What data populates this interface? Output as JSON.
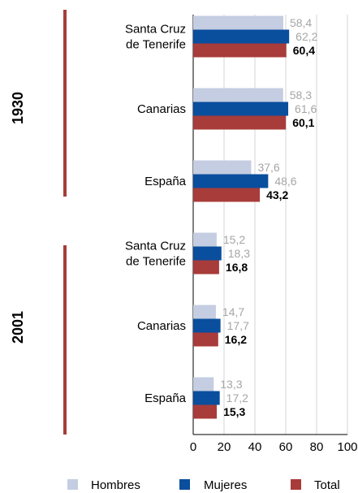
{
  "chart_data": {
    "type": "bar",
    "orientation": "horizontal",
    "xlim": [
      0,
      100
    ],
    "xticks": [
      "0",
      "20",
      "40",
      "60",
      "80",
      "100"
    ],
    "grid": true,
    "legend_position": "bottom",
    "groups": [
      {
        "label": "1930",
        "categories": [
          {
            "label": [
              "Santa Cruz",
              "de Tenerife"
            ],
            "values": [
              58.4,
              62.2,
              60.4
            ],
            "labels": [
              "58,4",
              "62,2",
              "60,4"
            ]
          },
          {
            "label": [
              "Canarias"
            ],
            "values": [
              58.3,
              61.6,
              60.1
            ],
            "labels": [
              "58,3",
              "61,6",
              "60,1"
            ]
          },
          {
            "label": [
              "España"
            ],
            "values": [
              37.6,
              48.6,
              43.2
            ],
            "labels": [
              "37,6",
              "48,6",
              "43,2"
            ]
          }
        ]
      },
      {
        "label": "2001",
        "categories": [
          {
            "label": [
              "Santa Cruz",
              "de Tenerife"
            ],
            "values": [
              15.2,
              18.3,
              16.8
            ],
            "labels": [
              "15,2",
              "18,3",
              "16,8"
            ]
          },
          {
            "label": [
              "Canarias"
            ],
            "values": [
              14.7,
              17.7,
              16.2
            ],
            "labels": [
              "14,7",
              "17,7",
              "16,2"
            ]
          },
          {
            "label": [
              "España"
            ],
            "values": [
              13.3,
              17.2,
              15.3
            ],
            "labels": [
              "13,3",
              "17,2",
              "15,3"
            ]
          }
        ]
      }
    ],
    "series": [
      {
        "name": "Hombres",
        "color": "#c4cde1"
      },
      {
        "name": "Mujeres",
        "color": "#0a4e9e"
      },
      {
        "name": "Total",
        "color": "#a83c3a"
      }
    ],
    "label_colors": [
      "#a6a6a6",
      "#a6a6a6",
      "#000000"
    ]
  }
}
